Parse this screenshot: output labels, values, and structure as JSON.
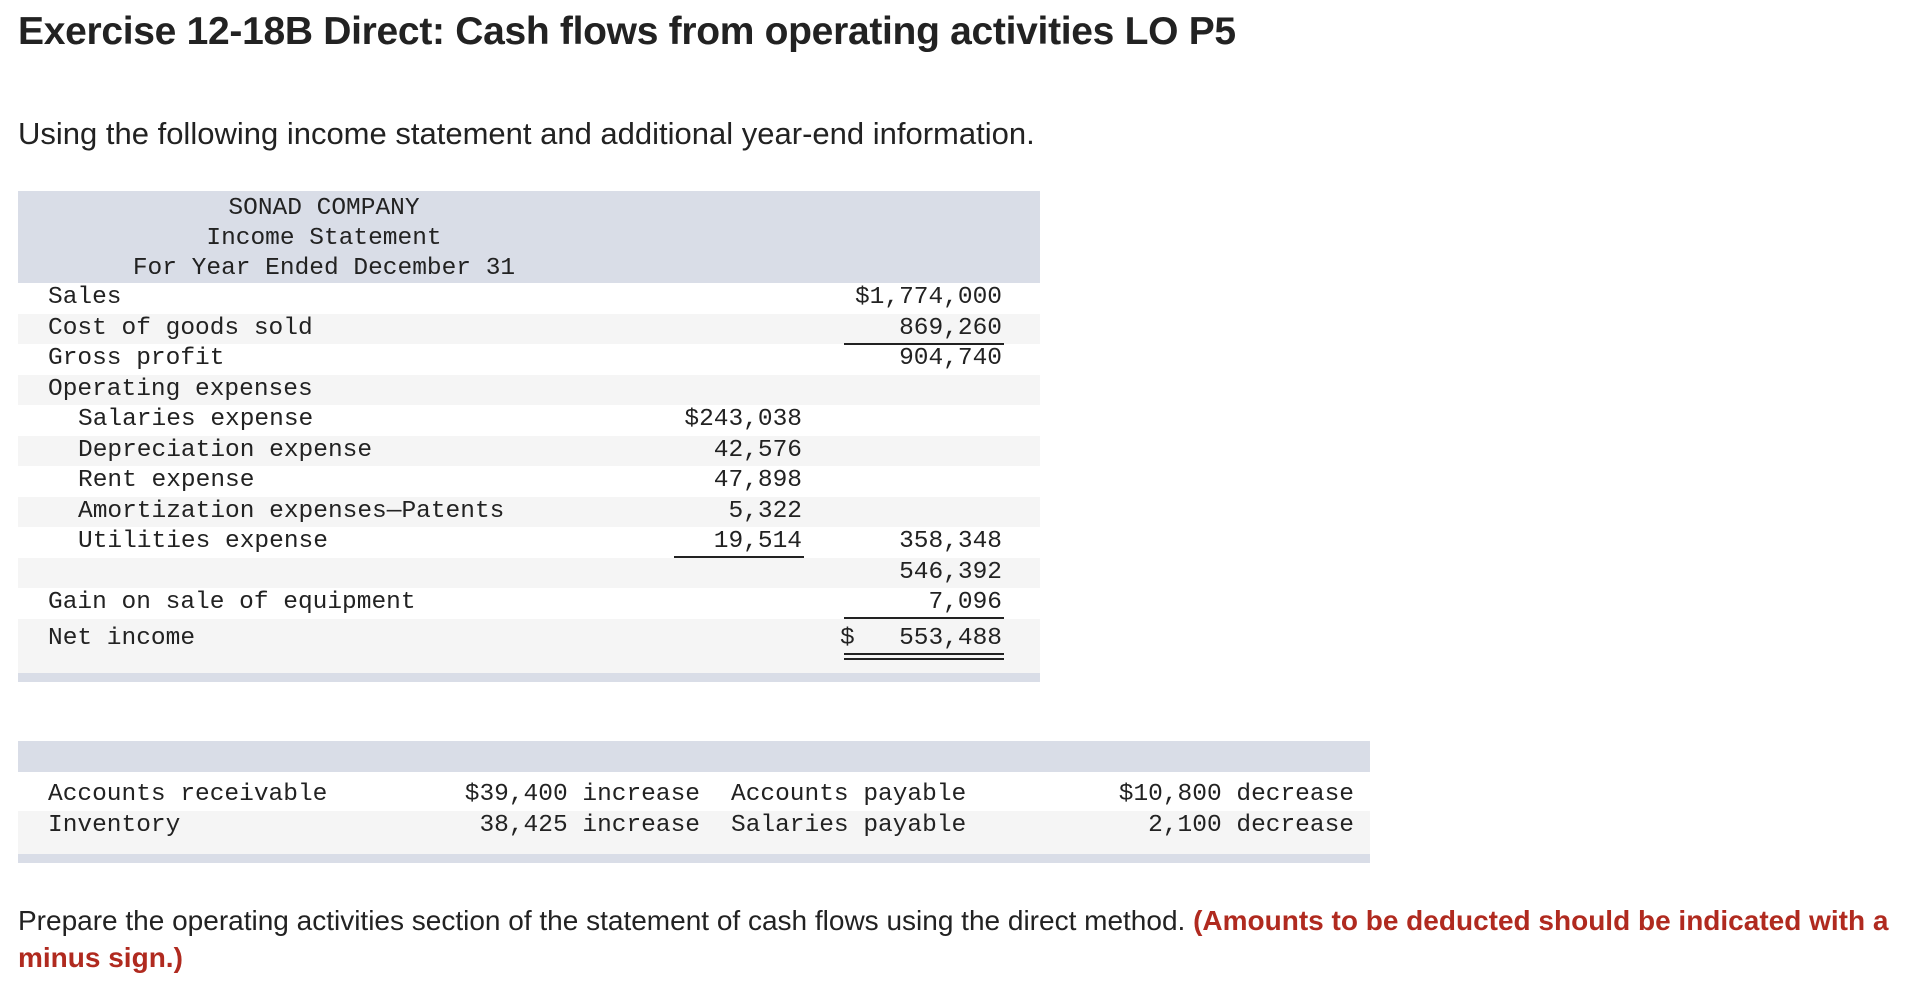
{
  "header": {
    "title": "Exercise 12-18B Direct: Cash flows from operating activities LO P5",
    "intro": "Using the following income statement and additional year-end information."
  },
  "income_statement": {
    "company": "SONAD COMPANY",
    "statement": "Income Statement",
    "period": "For Year Ended December 31",
    "sales": {
      "label": "Sales",
      "value": "$1,774,000"
    },
    "cogs": {
      "label": "Cost of goods sold",
      "value": "869,260"
    },
    "gross_profit": {
      "label": "Gross profit",
      "value": "904,740"
    },
    "opex_label": "Operating expenses",
    "salaries": {
      "label": "Salaries expense",
      "value": "$243,038"
    },
    "depreciation": {
      "label": "Depreciation expense",
      "value": "42,576"
    },
    "rent": {
      "label": "Rent expense",
      "value": "47,898"
    },
    "amortization": {
      "label": "Amortization expenses—Patents",
      "value": "5,322"
    },
    "utilities": {
      "label": "Utilities expense",
      "value": "19,514"
    },
    "total_opex": "358,348",
    "operating_income": "546,392",
    "gain": {
      "label": "Gain on sale of equipment",
      "value": "7,096"
    },
    "net_income": {
      "label": "Net income",
      "currency": "$",
      "value": "553,488"
    }
  },
  "additional_info": {
    "rows": [
      {
        "left_label": "Accounts receivable",
        "left_value": "$39,400 increase",
        "right_label": "Accounts payable",
        "right_value": "$10,800 decrease"
      },
      {
        "left_label": "Inventory",
        "left_value": "38,425 increase",
        "right_label": "Salaries payable",
        "right_value": "2,100 decrease"
      }
    ]
  },
  "instructions": {
    "text": "Prepare the operating activities section of the statement of cash flows using the direct method. ",
    "warning": "(Amounts to be deducted should be indicated with a minus sign.)",
    "warning_color": "#b02a1f"
  }
}
